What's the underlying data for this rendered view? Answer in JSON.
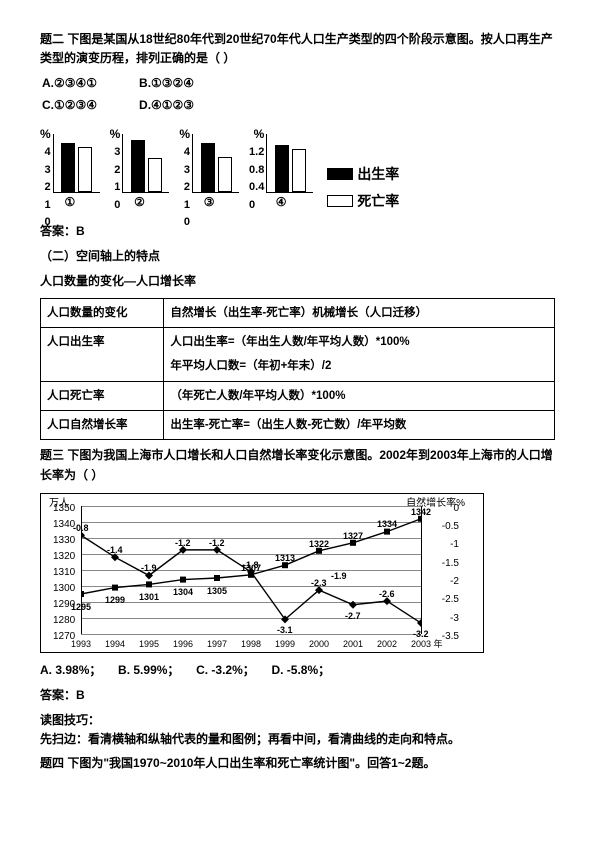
{
  "q2": {
    "title": "题二 下图是某国从18世纪80年代到20世纪70年代人口生产类型的四个阶段示意图。按人口再生产类型的演变历程，排列正确的是（        ）",
    "opts": {
      "a": "A.②③④①",
      "b": "B.①③②④",
      "c": "C.①②③④",
      "d": "D.④①②③"
    },
    "charts": [
      {
        "label": "①",
        "ymax": "4",
        "vals": [
          3.6,
          3.3
        ]
      },
      {
        "label": "②",
        "ymax": "3",
        "vals": [
          2.9,
          1.9
        ]
      },
      {
        "label": "③",
        "ymax": "4",
        "vals": [
          3.6,
          2.6
        ]
      },
      {
        "label": "④",
        "ymax": "1.2",
        "vals": [
          1.05,
          0.95
        ]
      }
    ],
    "chart4_ticks": [
      "1.2",
      "0.8",
      "0.4",
      "0"
    ],
    "pct": "%",
    "legend": {
      "birth": "出生率",
      "death": "死亡率"
    },
    "answer": "答案：B"
  },
  "sec2": {
    "title": "（二）空间轴上的特点",
    "sub": "人口数量的变化—人口增长率",
    "rows": [
      [
        "人口数量的变化",
        "自然增长（出生率-死亡率）机械增长（人口迁移）"
      ],
      [
        "人口出生率",
        "人口出生率=（年出生人数/年平均人数）*100%\n年平均人口数=（年初+年末）/2"
      ],
      [
        "人口死亡率",
        "（年死亡人数/年平均人数）*100%"
      ],
      [
        "人口自然增长率",
        "出生率-死亡率=（出生人数-死亡数）/年平均数"
      ]
    ]
  },
  "q3": {
    "title": "题三 下图为我国上海市人口增长和人口自然增长率变化示意图。2002年到2003年上海市的人口增长率为（        ）",
    "left_title": "万人",
    "right_title": "自然增长率%",
    "yl": [
      "1350",
      "1340",
      "1330",
      "1320",
      "1310",
      "1300",
      "1290",
      "1280",
      "1270"
    ],
    "yr": [
      "0",
      "-0.5",
      "-1",
      "-1.5",
      "-2",
      "-2.5",
      "-3",
      "-3.5"
    ],
    "years": [
      "1993",
      "1994",
      "1995",
      "1996",
      "1997",
      "1998",
      "1999",
      "2000",
      "2001",
      "2002",
      "2003 年"
    ],
    "pop": [
      1295,
      1299,
      1301,
      1304,
      1305,
      1307,
      1313,
      1322,
      1327,
      1334,
      1342
    ],
    "pop_labels": [
      "1295",
      "1299",
      "1301",
      "1304",
      "1305",
      "1307",
      "1313",
      "1322",
      "1327",
      "1334",
      "1342"
    ],
    "rate": [
      -0.8,
      -1.4,
      -1.9,
      -1.2,
      -1.2,
      -1.8,
      -3.1,
      -2.3,
      -2.7,
      -2.6,
      -3.2
    ],
    "rate_labels": [
      "-0.8",
      "-1.4",
      "-1.9",
      "-1.2",
      "-1.2",
      "-1.8",
      "-3.1",
      "-2.3",
      "-2.7",
      "-2.6",
      "-3.2"
    ],
    "extra_label": "-1.9",
    "opts": {
      "a": "A. 3.98%；",
      "b": "B. 5.99%；",
      "c": "C. -3.2%；",
      "d": "D. -5.8%；"
    },
    "answer": "答案：B",
    "tip_title": "读图技巧：",
    "tip": "先扫边：看清横轴和纵轴代表的量和图例；再看中间，看清曲线的走向和特点。"
  },
  "q4": {
    "title": "题四 下图为\"我国1970~2010年人口出生率和死亡率统计图\"。回答1~2题。"
  }
}
